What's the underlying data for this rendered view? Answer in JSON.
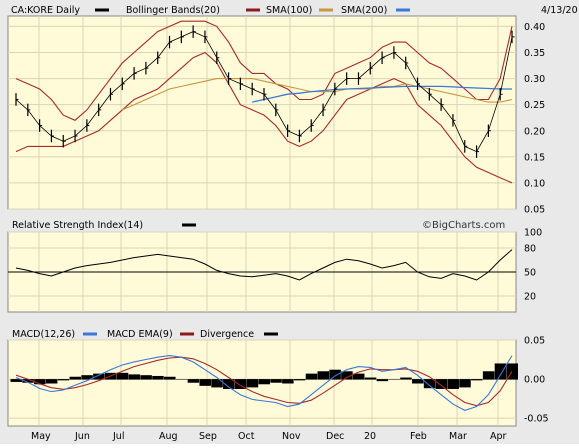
{
  "chart_data": [
    {
      "type": "line",
      "title": "CA:KORE Daily",
      "date": "4/13/20",
      "legend": [
        {
          "name": "CA:KORE Daily",
          "color": "#000000"
        },
        {
          "name": "Bollinger Bands(20)",
          "color": "#8b1a1a"
        },
        {
          "name": "SMA(100)",
          "color": "#c8963c"
        },
        {
          "name": "SMA(200)",
          "color": "#3b78d8"
        }
      ],
      "months": [
        "May",
        "Jun",
        "Jul",
        "Aug",
        "Sep",
        "Oct",
        "Nov",
        "Dec",
        "20",
        "Feb",
        "Mar",
        "Apr"
      ],
      "yticks": [
        "0.40",
        "0.35",
        "0.30",
        "0.25",
        "0.20",
        "0.15",
        "0.10",
        "0.05"
      ],
      "ylim": [
        0.05,
        0.42
      ],
      "grid": true,
      "price_close": [
        0.26,
        0.24,
        0.21,
        0.19,
        0.18,
        0.19,
        0.21,
        0.24,
        0.27,
        0.29,
        0.31,
        0.32,
        0.34,
        0.37,
        0.38,
        0.39,
        0.38,
        0.34,
        0.3,
        0.29,
        0.28,
        0.27,
        0.24,
        0.2,
        0.19,
        0.21,
        0.24,
        0.28,
        0.3,
        0.3,
        0.32,
        0.34,
        0.35,
        0.33,
        0.29,
        0.27,
        0.25,
        0.22,
        0.17,
        0.16,
        0.2,
        0.27,
        0.38
      ],
      "bb_upper": [
        0.3,
        0.29,
        0.28,
        0.26,
        0.23,
        0.22,
        0.24,
        0.27,
        0.3,
        0.33,
        0.35,
        0.37,
        0.39,
        0.4,
        0.41,
        0.41,
        0.41,
        0.4,
        0.37,
        0.33,
        0.31,
        0.31,
        0.29,
        0.28,
        0.26,
        0.26,
        0.27,
        0.31,
        0.32,
        0.33,
        0.34,
        0.36,
        0.37,
        0.37,
        0.35,
        0.33,
        0.32,
        0.3,
        0.28,
        0.26,
        0.26,
        0.3,
        0.4
      ],
      "bb_lower": [
        0.16,
        0.17,
        0.17,
        0.17,
        0.17,
        0.18,
        0.19,
        0.2,
        0.22,
        0.24,
        0.26,
        0.27,
        0.28,
        0.3,
        0.32,
        0.34,
        0.35,
        0.33,
        0.29,
        0.25,
        0.24,
        0.23,
        0.21,
        0.18,
        0.17,
        0.18,
        0.2,
        0.23,
        0.26,
        0.27,
        0.28,
        0.29,
        0.3,
        0.29,
        0.25,
        0.23,
        0.21,
        0.18,
        0.15,
        0.13,
        0.12,
        0.11,
        0.1
      ],
      "sma100": [
        null,
        null,
        null,
        null,
        null,
        null,
        null,
        null,
        null,
        0.24,
        0.25,
        0.26,
        0.27,
        0.28,
        0.285,
        0.29,
        0.295,
        0.3,
        0.3,
        0.3,
        0.3,
        0.295,
        0.29,
        0.285,
        0.28,
        0.275,
        0.275,
        0.275,
        0.28,
        0.28,
        0.28,
        0.285,
        0.285,
        0.29,
        0.285,
        0.28,
        0.275,
        0.27,
        0.265,
        0.26,
        0.255,
        0.255,
        0.26
      ],
      "sma200": [
        null,
        null,
        null,
        null,
        null,
        null,
        null,
        null,
        null,
        null,
        null,
        null,
        null,
        null,
        null,
        null,
        null,
        null,
        null,
        null,
        0.255,
        0.26,
        0.265,
        0.27,
        0.272,
        0.275,
        0.277,
        0.279,
        0.28,
        0.281,
        0.282,
        0.283,
        0.284,
        0.285,
        0.285,
        0.285,
        0.285,
        0.284,
        0.283,
        0.282,
        0.281,
        0.28,
        0.28
      ]
    },
    {
      "type": "line",
      "title": "Relative Strength Index(14)",
      "legend": [
        {
          "name": "Relative Strength Index(14)",
          "color": "#000000"
        }
      ],
      "watermark": "©BigCharts.com",
      "yticks": [
        "100",
        "80",
        "50",
        "20"
      ],
      "ylim": [
        0,
        100
      ],
      "midline": 50,
      "values": [
        55,
        52,
        48,
        45,
        50,
        55,
        58,
        60,
        62,
        65,
        68,
        70,
        72,
        70,
        68,
        66,
        60,
        52,
        48,
        45,
        44,
        46,
        48,
        45,
        40,
        48,
        55,
        62,
        66,
        64,
        60,
        55,
        58,
        62,
        50,
        44,
        42,
        48,
        45,
        40,
        50,
        65,
        78
      ]
    },
    {
      "type": "line",
      "title": "MACD(12,26)",
      "legend": [
        {
          "name": "MACD(12,26)",
          "color": "#000000"
        },
        {
          "name": "MACD EMA(9)",
          "color": "#3b78d8"
        },
        {
          "name": "Divergence",
          "color": "#8b1a1a"
        }
      ],
      "yticks": [
        "0.05",
        "0.00",
        "-0.05"
      ],
      "ylim": [
        -0.06,
        0.05
      ],
      "macd": [
        0.002,
        -0.004,
        -0.012,
        -0.016,
        -0.014,
        -0.008,
        -0.002,
        0.005,
        0.012,
        0.018,
        0.022,
        0.025,
        0.028,
        0.03,
        0.028,
        0.022,
        0.012,
        0.002,
        -0.01,
        -0.02,
        -0.026,
        -0.028,
        -0.03,
        -0.035,
        -0.032,
        -0.02,
        -0.008,
        0.004,
        0.012,
        0.016,
        0.015,
        0.01,
        0.012,
        0.015,
        0.005,
        -0.008,
        -0.02,
        -0.032,
        -0.04,
        -0.035,
        -0.02,
        0.005,
        0.03
      ],
      "ema": [
        0.005,
        0.0,
        -0.006,
        -0.011,
        -0.013,
        -0.011,
        -0.007,
        -0.002,
        0.004,
        0.01,
        0.016,
        0.02,
        0.024,
        0.027,
        0.028,
        0.026,
        0.02,
        0.012,
        0.002,
        -0.008,
        -0.016,
        -0.022,
        -0.026,
        -0.03,
        -0.031,
        -0.027,
        -0.018,
        -0.008,
        0.002,
        0.009,
        0.013,
        0.012,
        0.012,
        0.013,
        0.01,
        0.003,
        -0.008,
        -0.02,
        -0.03,
        -0.034,
        -0.03,
        -0.015,
        0.01
      ],
      "divergence": [
        -0.003,
        -0.004,
        -0.006,
        -0.005,
        -0.001,
        0.003,
        0.005,
        0.007,
        0.008,
        0.008,
        0.006,
        0.005,
        0.004,
        0.003,
        0.0,
        -0.004,
        -0.008,
        -0.01,
        -0.012,
        -0.012,
        -0.01,
        -0.006,
        -0.004,
        -0.005,
        -0.001,
        0.007,
        0.01,
        0.012,
        0.01,
        0.007,
        0.002,
        -0.002,
        0.0,
        0.002,
        -0.005,
        -0.011,
        -0.012,
        -0.012,
        -0.01,
        -0.001,
        0.01,
        0.02,
        0.02
      ]
    }
  ]
}
